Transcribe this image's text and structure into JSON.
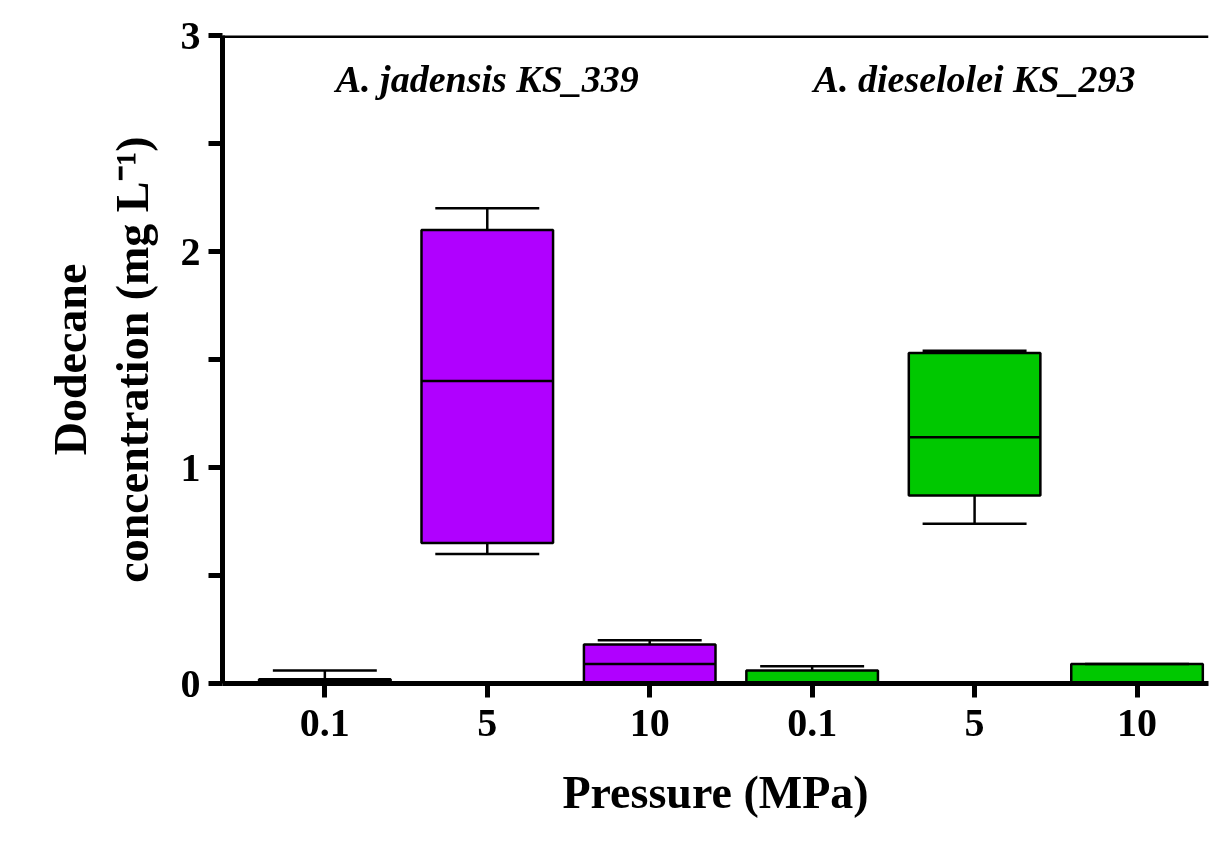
{
  "chart_data": {
    "type": "box",
    "xlabel": "Pressure (MPa)",
    "ylabel": "Dodecane concentration (mg L⁻¹)",
    "categories": [
      "0.1",
      "5",
      "10",
      "0.1",
      "5",
      "10"
    ],
    "colors": [
      "#b000ff",
      "#b000ff",
      "#b000ff",
      "#00c800",
      "#00c800",
      "#00c800"
    ],
    "boxes": [
      {
        "low": 0,
        "q1": 0,
        "median": 0.01,
        "q3": 0.02,
        "high": 0.06
      },
      {
        "low": 0.6,
        "q1": 0.65,
        "median": 1.4,
        "q3": 2.1,
        "high": 2.2
      },
      {
        "low": 0,
        "q1": 0,
        "median": 0.09,
        "q3": 0.18,
        "high": 0.2
      },
      {
        "low": 0,
        "q1": 0,
        "median": 0,
        "q3": 0.06,
        "high": 0.08
      },
      {
        "low": 0.74,
        "q1": 0.87,
        "median": 1.14,
        "q3": 1.53,
        "high": 1.54
      },
      {
        "low": 0,
        "q1": 0,
        "median": 0,
        "q3": 0.09,
        "high": 0.09
      }
    ],
    "annotations": [
      "A. jadensis KS_339",
      "A. dieselolei KS_293"
    ],
    "ylim": [
      0,
      3
    ],
    "yticks": [
      0,
      {
        "value": 0.5,
        "label": null
      },
      1,
      {
        "value": 1.5,
        "label": null
      },
      2,
      {
        "value": 2.5,
        "label": null
      },
      3
    ],
    "grid": false
  }
}
